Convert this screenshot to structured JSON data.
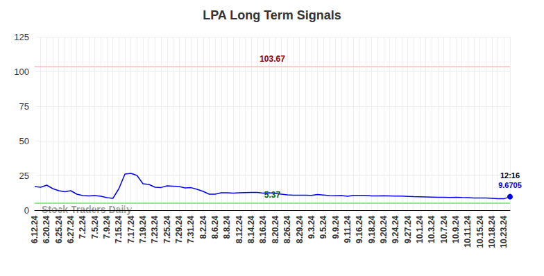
{
  "chart_data": {
    "type": "line",
    "title": "LPA Long Term Signals",
    "watermark": "Stock Traders Daily",
    "categories": [
      "6.12.24",
      null,
      "6.20.24",
      null,
      "6.25.24",
      null,
      "6.27.24",
      null,
      "7.2.24",
      null,
      "7.5.24",
      null,
      "7.9.24",
      null,
      "7.15.24",
      null,
      "7.17.24",
      null,
      "7.19.24",
      null,
      "7.23.24",
      null,
      "7.25.24",
      null,
      "7.29.24",
      null,
      "7.31.24",
      null,
      "8.2.24",
      null,
      "8.6.24",
      null,
      "8.8.24",
      null,
      "8.12.24",
      null,
      "8.14.24",
      null,
      "8.16.24",
      null,
      "8.20.24",
      null,
      "8.26.24",
      null,
      "8.29.24",
      null,
      "9.3.24",
      null,
      "9.5.24",
      null,
      "9.9.24",
      null,
      "9.11.24",
      null,
      "9.16.24",
      null,
      "9.18.24",
      null,
      "9.20.24",
      null,
      "9.24.24",
      null,
      "9.27.24",
      null,
      "10.1.24",
      null,
      "10.3.24",
      null,
      "10.7.24",
      null,
      "10.9.24",
      null,
      "10.11.24",
      null,
      "10.15.24",
      null,
      "10.18.24",
      null,
      "10.23.24",
      null
    ],
    "values": [
      17,
      16.5,
      18,
      15.5,
      14,
      13.3,
      14,
      11.5,
      10.5,
      10.3,
      10.5,
      10,
      9,
      8.5,
      15.5,
      26,
      26.5,
      25,
      19,
      18.5,
      16.5,
      16.3,
      17.5,
      17.3,
      17,
      16,
      16.2,
      15,
      13.5,
      11.5,
      11.5,
      12.5,
      12.5,
      12.3,
      12.5,
      12.6,
      12.7,
      12.7,
      12.2,
      12.5,
      12,
      11.5,
      11,
      10.8,
      10.7,
      10.7,
      10.6,
      11.2,
      10.9,
      10.5,
      10.4,
      10.5,
      10,
      10.6,
      10.6,
      10.6,
      10.3,
      10.2,
      10.4,
      10.3,
      10.1,
      10.1,
      9.9,
      9.7,
      9.6,
      9.5,
      9.4,
      9.3,
      9.2,
      9.1,
      9.3,
      9.1,
      9.0,
      8.7,
      8.8,
      8.7,
      8.5,
      8.2,
      8.2,
      9.6705
    ],
    "color": "#0000ee",
    "last_point": {
      "time_label": "12:16"
    },
    "reference_lines": [
      {
        "value": 103.67,
        "color": "#ffcccc",
        "label_color": "#8b0000"
      },
      {
        "value": 5.37,
        "color": "#90ee90",
        "label_color": "#006400"
      }
    ],
    "ylim": [
      0,
      125
    ],
    "yticks": [
      0,
      25,
      50,
      75,
      100,
      125
    ],
    "grid": true
  }
}
